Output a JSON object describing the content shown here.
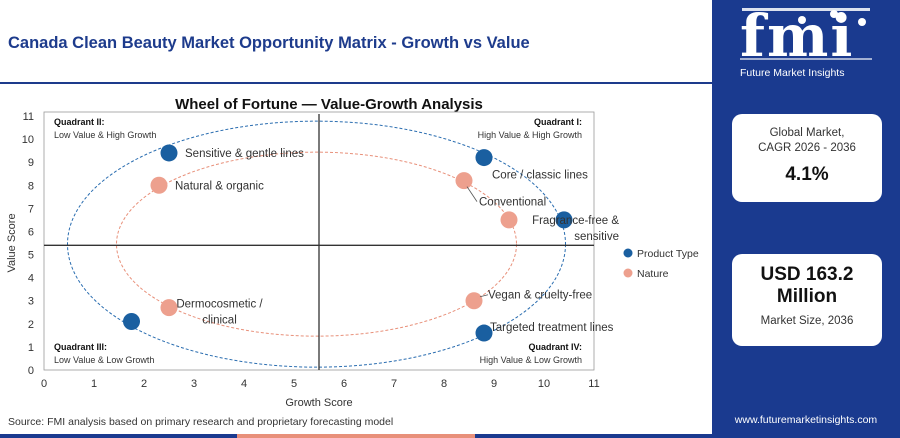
{
  "page_title": "Canada Clean Beauty Market Opportunity Matrix - Growth vs Value",
  "source": "Source: FMI analysis based on primary research and proprietary forecasting model",
  "brand": {
    "logo_text": "fmi",
    "tagline": "Future Market Insights",
    "url": "www.futuremarketinsights.com",
    "primary_color": "#1a3a8f",
    "accent_color": "#e8907a"
  },
  "stats": {
    "cagr_label_line1": "Global Market,",
    "cagr_label_line2": "CAGR 2026 - 2036",
    "cagr_value": "4.1%",
    "size_value_line1": "USD 163.2",
    "size_value_line2": "Million",
    "size_label": "Market Size, 2036"
  },
  "chart_data": {
    "type": "scatter",
    "title": "Wheel of Fortune — Value-Growth Analysis",
    "xlabel": "Growth Score",
    "ylabel": "Value Score",
    "xlim": [
      0,
      11
    ],
    "ylim": [
      0,
      11
    ],
    "xticks": [
      0,
      1,
      2,
      3,
      4,
      5,
      6,
      7,
      8,
      9,
      10,
      11
    ],
    "yticks": [
      0,
      1,
      2,
      3,
      4,
      5,
      6,
      7,
      8,
      9,
      10,
      11
    ],
    "grid": false,
    "legend_position": "right",
    "divider_x": 5.5,
    "divider_y": 5.4,
    "quadrants": [
      {
        "title": "Quadrant II:",
        "subtitle": "Low Value & High Growth",
        "position": "top-left"
      },
      {
        "title": "Quadrant I:",
        "subtitle": "High Value & High Growth",
        "position": "top-right"
      },
      {
        "title": "Quadrant III:",
        "subtitle": "Low Value & Low Growth",
        "position": "bottom-left"
      },
      {
        "title": "Quadrant IV:",
        "subtitle": "High Value & Low Growth",
        "position": "bottom-right"
      }
    ],
    "series": [
      {
        "name": "Product Type",
        "color": "#1a5fa0",
        "points": [
          {
            "label": "Sensitive & gentle lines",
            "x": 2.5,
            "y": 9.4
          },
          {
            "label": "Core / classic lines",
            "x": 8.8,
            "y": 9.2
          },
          {
            "label": "Fragrance-free & sensitive",
            "x": 10.4,
            "y": 6.5
          },
          {
            "label": "Targeted treatment lines",
            "x": 8.8,
            "y": 1.6
          },
          {
            "label": "Dermocosmetic / clinical",
            "x": 1.75,
            "y": 2.1
          }
        ]
      },
      {
        "name": "Nature",
        "color": "#eda08e",
        "points": [
          {
            "label": "Natural & organic",
            "x": 2.3,
            "y": 8.0
          },
          {
            "label": "Conventional",
            "x": 8.4,
            "y": 8.2
          },
          {
            "label": "Vegan & cruelty-free",
            "x": 8.6,
            "y": 3.0
          },
          {
            "label": "",
            "x": 9.3,
            "y": 6.5
          },
          {
            "label": "",
            "x": 2.5,
            "y": 2.7
          }
        ]
      }
    ]
  }
}
